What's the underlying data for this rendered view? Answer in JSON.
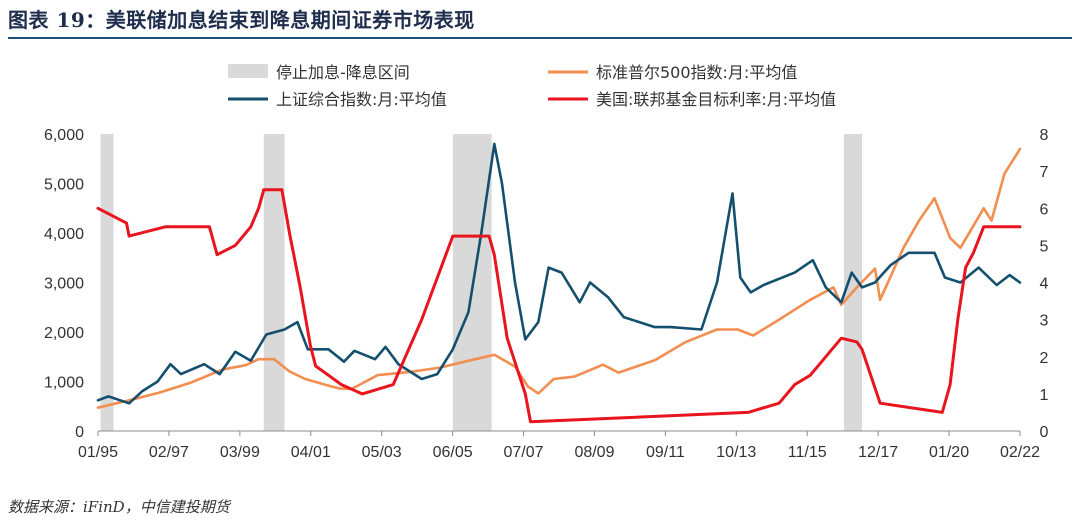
{
  "title": "图表 19：美联储加息结束到降息期间证券市场表现",
  "source": "数据来源：iFinD，中信建投期货",
  "chart_data": {
    "type": "line",
    "x_labels": [
      "01/95",
      "02/97",
      "03/99",
      "04/01",
      "05/03",
      "06/05",
      "07/07",
      "08/09",
      "09/11",
      "10/13",
      "11/15",
      "12/17",
      "01/20",
      "02/22"
    ],
    "x_range": [
      "1995-01",
      "2024-09"
    ],
    "ylim_left": [
      0,
      6000
    ],
    "yticks_left": [
      "0",
      "1,000",
      "2,000",
      "3,000",
      "4,000",
      "5,000",
      "6,000"
    ],
    "ylim_right": [
      0,
      8
    ],
    "yticks_right": [
      "0",
      "1",
      "2",
      "3",
      "4",
      "5",
      "6",
      "7",
      "8"
    ],
    "legend": [
      {
        "name": "停止加息-降息区间",
        "kind": "band",
        "color": "#d9d9d9"
      },
      {
        "name": "标准普尔500指数:月:平均值",
        "kind": "line",
        "color": "#f28e50"
      },
      {
        "name": "上证综合指数:月:平均值",
        "kind": "line",
        "color": "#14506e"
      },
      {
        "name": "美国:联邦基金目标利率:月:平均值",
        "kind": "line",
        "color": "#e8141e"
      }
    ],
    "shaded_periods": [
      [
        "1995-02",
        "1995-07"
      ],
      [
        "2000-05",
        "2001-01"
      ],
      [
        "2006-06",
        "2007-09"
      ],
      [
        "2019-01",
        "2019-08"
      ]
    ],
    "series": [
      {
        "name": "标准普尔500指数:月:平均值",
        "axis": "left",
        "color": "#f28e50",
        "points": [
          [
            "1995-01",
            470
          ],
          [
            "1996-01",
            620
          ],
          [
            "1997-01",
            780
          ],
          [
            "1998-01",
            980
          ],
          [
            "1999-01",
            1240
          ],
          [
            "1999-10",
            1330
          ],
          [
            "2000-03",
            1450
          ],
          [
            "2000-09",
            1450
          ],
          [
            "2001-03",
            1200
          ],
          [
            "2001-09",
            1050
          ],
          [
            "2002-07",
            900
          ],
          [
            "2002-10",
            860
          ],
          [
            "2003-03",
            850
          ],
          [
            "2004-01",
            1130
          ],
          [
            "2005-01",
            1190
          ],
          [
            "2006-01",
            1280
          ],
          [
            "2007-01",
            1430
          ],
          [
            "2007-10",
            1540
          ],
          [
            "2008-06",
            1300
          ],
          [
            "2008-11",
            900
          ],
          [
            "2009-03",
            760
          ],
          [
            "2009-09",
            1050
          ],
          [
            "2010-05",
            1100
          ],
          [
            "2011-04",
            1340
          ],
          [
            "2011-10",
            1180
          ],
          [
            "2012-12",
            1430
          ],
          [
            "2013-12",
            1800
          ],
          [
            "2014-12",
            2050
          ],
          [
            "2015-08",
            2050
          ],
          [
            "2016-02",
            1930
          ],
          [
            "2016-12",
            2250
          ],
          [
            "2017-12",
            2650
          ],
          [
            "2018-09",
            2900
          ],
          [
            "2018-12",
            2550
          ],
          [
            "2019-06",
            2900
          ],
          [
            "2020-01",
            3280
          ],
          [
            "2020-03",
            2650
          ],
          [
            "2020-12",
            3700
          ],
          [
            "2021-06",
            4250
          ],
          [
            "2021-12",
            4700
          ],
          [
            "2022-06",
            3900
          ],
          [
            "2022-10",
            3700
          ],
          [
            "2023-07",
            4500
          ],
          [
            "2023-10",
            4250
          ],
          [
            "2024-03",
            5200
          ],
          [
            "2024-09",
            5700
          ]
        ]
      },
      {
        "name": "上证综合指数:月:平均值",
        "axis": "left",
        "color": "#14506e",
        "points": [
          [
            "1995-01",
            620
          ],
          [
            "1995-05",
            700
          ],
          [
            "1996-01",
            560
          ],
          [
            "1996-06",
            800
          ],
          [
            "1996-12",
            1000
          ],
          [
            "1997-05",
            1350
          ],
          [
            "1997-09",
            1150
          ],
          [
            "1998-06",
            1350
          ],
          [
            "1998-12",
            1150
          ],
          [
            "1999-06",
            1600
          ],
          [
            "1999-12",
            1420
          ],
          [
            "2000-06",
            1950
          ],
          [
            "2001-01",
            2050
          ],
          [
            "2001-06",
            2200
          ],
          [
            "2001-10",
            1650
          ],
          [
            "2002-06",
            1650
          ],
          [
            "2002-12",
            1400
          ],
          [
            "2003-04",
            1620
          ],
          [
            "2003-12",
            1450
          ],
          [
            "2004-04",
            1700
          ],
          [
            "2004-09",
            1350
          ],
          [
            "2005-06",
            1050
          ],
          [
            "2005-12",
            1150
          ],
          [
            "2006-06",
            1650
          ],
          [
            "2006-12",
            2400
          ],
          [
            "2007-05",
            4000
          ],
          [
            "2007-10",
            5800
          ],
          [
            "2008-01",
            5000
          ],
          [
            "2008-06",
            3000
          ],
          [
            "2008-10",
            1850
          ],
          [
            "2009-03",
            2200
          ],
          [
            "2009-07",
            3300
          ],
          [
            "2009-12",
            3200
          ],
          [
            "2010-07",
            2600
          ],
          [
            "2010-11",
            3000
          ],
          [
            "2011-06",
            2700
          ],
          [
            "2011-12",
            2300
          ],
          [
            "2012-12",
            2100
          ],
          [
            "2013-06",
            2100
          ],
          [
            "2014-06",
            2050
          ],
          [
            "2014-12",
            3000
          ],
          [
            "2015-06",
            4800
          ],
          [
            "2015-09",
            3100
          ],
          [
            "2016-01",
            2800
          ],
          [
            "2016-06",
            2950
          ],
          [
            "2017-06",
            3200
          ],
          [
            "2018-01",
            3450
          ],
          [
            "2018-06",
            2900
          ],
          [
            "2018-12",
            2600
          ],
          [
            "2019-04",
            3200
          ],
          [
            "2019-08",
            2900
          ],
          [
            "2020-01",
            3000
          ],
          [
            "2020-07",
            3350
          ],
          [
            "2021-02",
            3600
          ],
          [
            "2021-12",
            3600
          ],
          [
            "2022-04",
            3100
          ],
          [
            "2022-10",
            3000
          ],
          [
            "2023-05",
            3300
          ],
          [
            "2023-12",
            2950
          ],
          [
            "2024-05",
            3150
          ],
          [
            "2024-09",
            3000
          ]
        ]
      },
      {
        "name": "美国:联邦基金目标利率:月:平均值",
        "axis": "right",
        "color": "#e8141e",
        "points": [
          [
            "1995-01",
            6.0
          ],
          [
            "1995-12",
            5.6
          ],
          [
            "1996-01",
            5.25
          ],
          [
            "1997-03",
            5.5
          ],
          [
            "1998-08",
            5.5
          ],
          [
            "1998-09",
            5.25
          ],
          [
            "1998-11",
            4.75
          ],
          [
            "1999-06",
            5.0
          ],
          [
            "1999-12",
            5.5
          ],
          [
            "2000-03",
            6.0
          ],
          [
            "2000-05",
            6.5
          ],
          [
            "2000-12",
            6.5
          ],
          [
            "2001-03",
            5.3
          ],
          [
            "2001-07",
            3.9
          ],
          [
            "2001-11",
            2.3
          ],
          [
            "2002-01",
            1.75
          ],
          [
            "2002-11",
            1.25
          ],
          [
            "2003-07",
            1.0
          ],
          [
            "2004-07",
            1.25
          ],
          [
            "2005-06",
            3.0
          ],
          [
            "2006-06",
            5.25
          ],
          [
            "2007-08",
            5.25
          ],
          [
            "2007-10",
            4.75
          ],
          [
            "2008-03",
            2.5
          ],
          [
            "2008-10",
            1.0
          ],
          [
            "2008-12",
            0.25
          ],
          [
            "2015-12",
            0.5
          ],
          [
            "2016-12",
            0.75
          ],
          [
            "2017-06",
            1.25
          ],
          [
            "2017-12",
            1.5
          ],
          [
            "2018-12",
            2.5
          ],
          [
            "2019-06",
            2.4
          ],
          [
            "2019-08",
            2.2
          ],
          [
            "2020-03",
            0.75
          ],
          [
            "2022-03",
            0.5
          ],
          [
            "2022-06",
            1.25
          ],
          [
            "2022-09",
            3.0
          ],
          [
            "2022-12",
            4.4
          ],
          [
            "2023-03",
            4.8
          ],
          [
            "2023-07",
            5.5
          ],
          [
            "2024-09",
            5.5
          ]
        ]
      }
    ]
  }
}
